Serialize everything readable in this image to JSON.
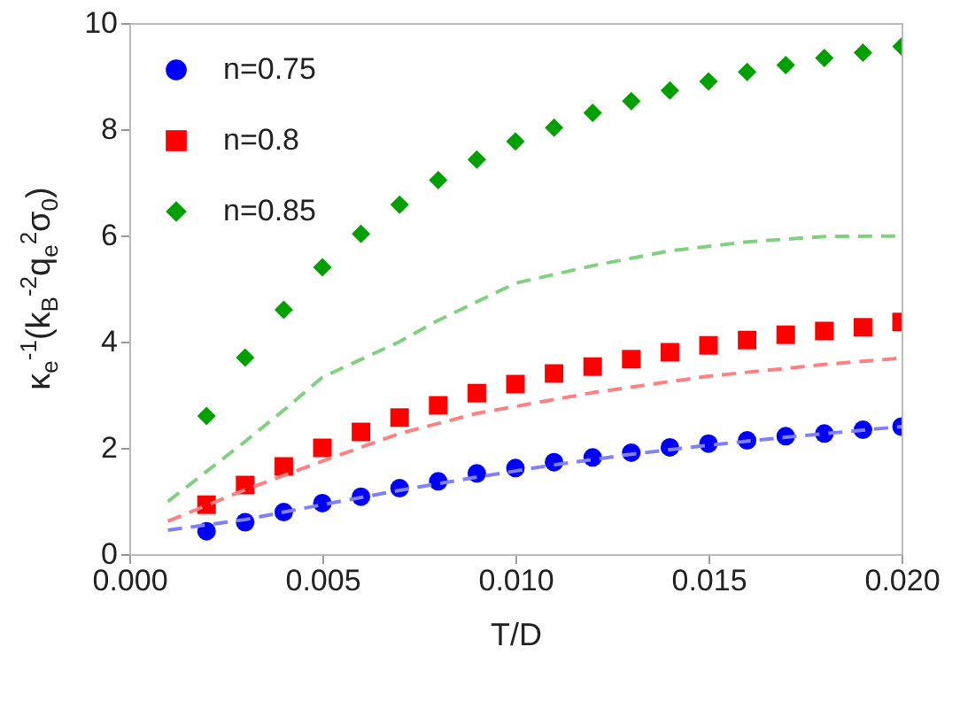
{
  "chart_data": {
    "type": "scatter",
    "xlabel": "T/D",
    "ylabel": "κ$_{e}$$^{-1}$(k$_{B}$$^{-2}$q$_{e}$$^{2}$σ$_{0}$)",
    "xlim": [
      0,
      0.02
    ],
    "ylim": [
      0,
      10
    ],
    "xticks": [
      {
        "value": 0,
        "label": "0.000"
      },
      {
        "value": 0.005,
        "label": "0.005"
      },
      {
        "value": 0.01,
        "label": "0.010"
      },
      {
        "value": 0.015,
        "label": "0.015"
      },
      {
        "value": 0.02,
        "label": "0.020"
      }
    ],
    "yticks": [
      0,
      2,
      4,
      6,
      8,
      10
    ],
    "grid": false,
    "legend": "top left",
    "x": [
      0.002,
      0.003,
      0.004,
      0.005,
      0.006,
      0.007,
      0.008,
      0.009,
      0.01,
      0.011,
      0.012,
      0.013,
      0.014,
      0.015,
      0.016,
      0.017,
      0.018,
      0.019,
      0.02
    ],
    "series": [
      {
        "name": "n=0.75",
        "marker": "circle",
        "color": "#0000ff",
        "values": [
          0.43,
          0.6,
          0.79,
          0.96,
          1.08,
          1.24,
          1.37,
          1.52,
          1.62,
          1.73,
          1.82,
          1.91,
          2.01,
          2.08,
          2.14,
          2.22,
          2.27,
          2.34,
          2.4
        ]
      },
      {
        "name": "n=0.8",
        "marker": "square",
        "color": "#ff0000",
        "values": [
          0.93,
          1.3,
          1.65,
          2.0,
          2.3,
          2.57,
          2.8,
          3.03,
          3.2,
          3.4,
          3.53,
          3.67,
          3.8,
          3.93,
          4.03,
          4.13,
          4.2,
          4.27,
          4.37
        ]
      },
      {
        "name": "n=0.85",
        "marker": "diamond",
        "color": "#00a000",
        "values": [
          2.6,
          3.7,
          4.6,
          5.4,
          6.03,
          6.58,
          7.04,
          7.43,
          7.77,
          8.03,
          8.31,
          8.53,
          8.73,
          8.9,
          9.08,
          9.21,
          9.34,
          9.44,
          9.56
        ]
      },
      {
        "type": "line",
        "line_style": "dashed",
        "color": "#8080ff",
        "x": [
          0.001,
          0.003,
          0.005,
          0.007,
          0.009,
          0.011,
          0.013,
          0.015,
          0.017,
          0.02
        ],
        "values": [
          0.45,
          0.65,
          0.93,
          1.2,
          1.45,
          1.68,
          1.88,
          2.05,
          2.2,
          2.4
        ]
      },
      {
        "type": "line",
        "line_style": "dashed",
        "color": "#ff8080",
        "x": [
          0.001,
          0.003,
          0.005,
          0.007,
          0.009,
          0.012,
          0.015,
          0.018,
          0.02
        ],
        "values": [
          0.62,
          1.21,
          1.75,
          2.27,
          2.65,
          3.04,
          3.35,
          3.57,
          3.69
        ]
      },
      {
        "type": "line",
        "line_style": "dashed",
        "color": "#80d080",
        "x": [
          0.001,
          0.003,
          0.004,
          0.005,
          0.007,
          0.008,
          0.01,
          0.012,
          0.014,
          0.016,
          0.018,
          0.02
        ],
        "values": [
          0.99,
          2.12,
          2.71,
          3.33,
          4.0,
          4.4,
          5.1,
          5.43,
          5.71,
          5.88,
          5.98,
          5.99
        ]
      }
    ]
  }
}
